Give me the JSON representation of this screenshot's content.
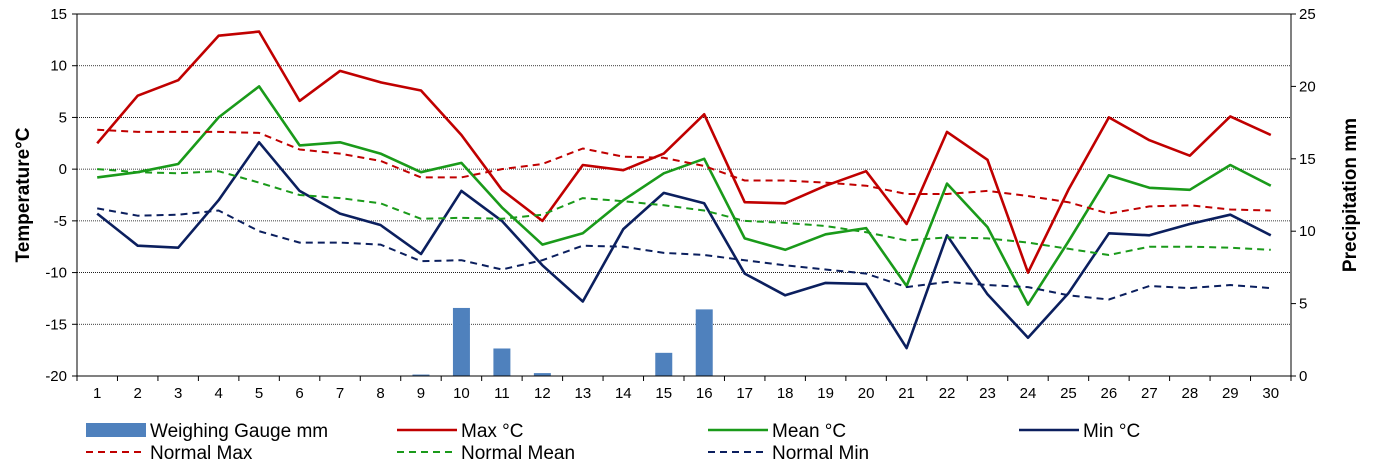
{
  "chart_data": {
    "type": "line",
    "x": [
      1,
      2,
      3,
      4,
      5,
      6,
      7,
      8,
      9,
      10,
      11,
      12,
      13,
      14,
      15,
      16,
      17,
      18,
      19,
      20,
      21,
      22,
      23,
      24,
      25,
      26,
      27,
      28,
      29,
      30
    ],
    "y_left": {
      "label": "Temperature°C",
      "lim": [
        -20,
        15
      ],
      "ticks": [
        -20,
        -15,
        -10,
        -5,
        0,
        5,
        10,
        15
      ]
    },
    "y_right": {
      "label": "Precipitation mm",
      "lim": [
        0,
        25
      ],
      "ticks": [
        0,
        5,
        10,
        15,
        20,
        25
      ]
    },
    "grid": "horizontal",
    "legend_position": "bottom",
    "bars": {
      "name": "Weighing Gauge mm",
      "color": "#4f81bd",
      "axis": "right",
      "values": [
        0,
        0,
        0,
        0,
        0,
        0,
        0,
        0,
        0.1,
        4.7,
        1.9,
        0.2,
        0,
        0,
        1.6,
        4.6,
        0,
        0,
        0,
        0,
        0,
        0,
        0,
        0,
        0,
        0,
        0,
        0,
        0,
        0
      ]
    },
    "series": [
      {
        "name": "Max °C",
        "color": "#c00000",
        "dash": false,
        "axis": "left",
        "values": [
          2.5,
          7.1,
          8.6,
          12.9,
          13.3,
          6.6,
          9.5,
          8.4,
          7.6,
          3.3,
          -2.0,
          -5.0,
          0.4,
          -0.1,
          1.5,
          5.3,
          -3.2,
          -3.3,
          -1.6,
          -0.2,
          -5.3,
          3.6,
          0.9,
          -10.0,
          -2.0,
          5.0,
          2.8,
          1.3,
          5.1,
          3.3
        ]
      },
      {
        "name": "Mean °C",
        "color": "#1a9a1a",
        "dash": false,
        "axis": "left",
        "values": [
          -0.8,
          -0.3,
          0.5,
          5.0,
          8.0,
          2.3,
          2.6,
          1.5,
          -0.3,
          0.6,
          -3.7,
          -7.3,
          -6.2,
          -3.0,
          -0.4,
          1.0,
          -6.7,
          -7.8,
          -6.3,
          -5.7,
          -11.3,
          -1.4,
          -5.6,
          -13.1,
          -7.0,
          -0.6,
          -1.8,
          -2.0,
          0.4,
          -1.6
        ]
      },
      {
        "name": "Min °C",
        "color": "#0b1f5e",
        "dash": false,
        "axis": "left",
        "values": [
          -4.3,
          -7.4,
          -7.6,
          -3.0,
          2.6,
          -2.1,
          -4.3,
          -5.4,
          -8.2,
          -2.1,
          -5.0,
          -9.3,
          -12.8,
          -5.8,
          -2.3,
          -3.3,
          -10.1,
          -12.2,
          -11.0,
          -11.1,
          -17.3,
          -6.4,
          -12.1,
          -16.3,
          -12.0,
          -6.2,
          -6.4,
          -5.3,
          -4.4,
          -6.4
        ]
      },
      {
        "name": "Normal Max",
        "color": "#c00000",
        "dash": true,
        "axis": "left",
        "values": [
          3.8,
          3.6,
          3.6,
          3.6,
          3.5,
          1.9,
          1.5,
          0.8,
          -0.8,
          -0.8,
          0.0,
          0.5,
          2.0,
          1.2,
          1.1,
          0.3,
          -1.1,
          -1.1,
          -1.3,
          -1.6,
          -2.4,
          -2.4,
          -2.1,
          -2.6,
          -3.2,
          -4.3,
          -3.6,
          -3.5,
          -3.9,
          -4.0
        ]
      },
      {
        "name": "Normal Mean",
        "color": "#1a9a1a",
        "dash": true,
        "axis": "left",
        "values": [
          0.0,
          -0.3,
          -0.4,
          -0.2,
          -1.3,
          -2.5,
          -2.8,
          -3.3,
          -4.8,
          -4.7,
          -4.8,
          -4.4,
          -2.8,
          -3.1,
          -3.5,
          -4.0,
          -5.0,
          -5.2,
          -5.5,
          -6.1,
          -6.9,
          -6.6,
          -6.7,
          -7.1,
          -7.7,
          -8.3,
          -7.5,
          -7.5,
          -7.6,
          -7.8
        ]
      },
      {
        "name": "Normal Min",
        "color": "#0b1f5e",
        "dash": true,
        "axis": "left",
        "values": [
          -3.8,
          -4.5,
          -4.4,
          -4.0,
          -6.0,
          -7.1,
          -7.1,
          -7.3,
          -8.9,
          -8.8,
          -9.7,
          -8.8,
          -7.4,
          -7.5,
          -8.1,
          -8.3,
          -8.8,
          -9.3,
          -9.7,
          -10.1,
          -11.4,
          -10.9,
          -11.2,
          -11.4,
          -12.2,
          -12.6,
          -11.3,
          -11.5,
          -11.2,
          -11.5
        ]
      }
    ]
  }
}
